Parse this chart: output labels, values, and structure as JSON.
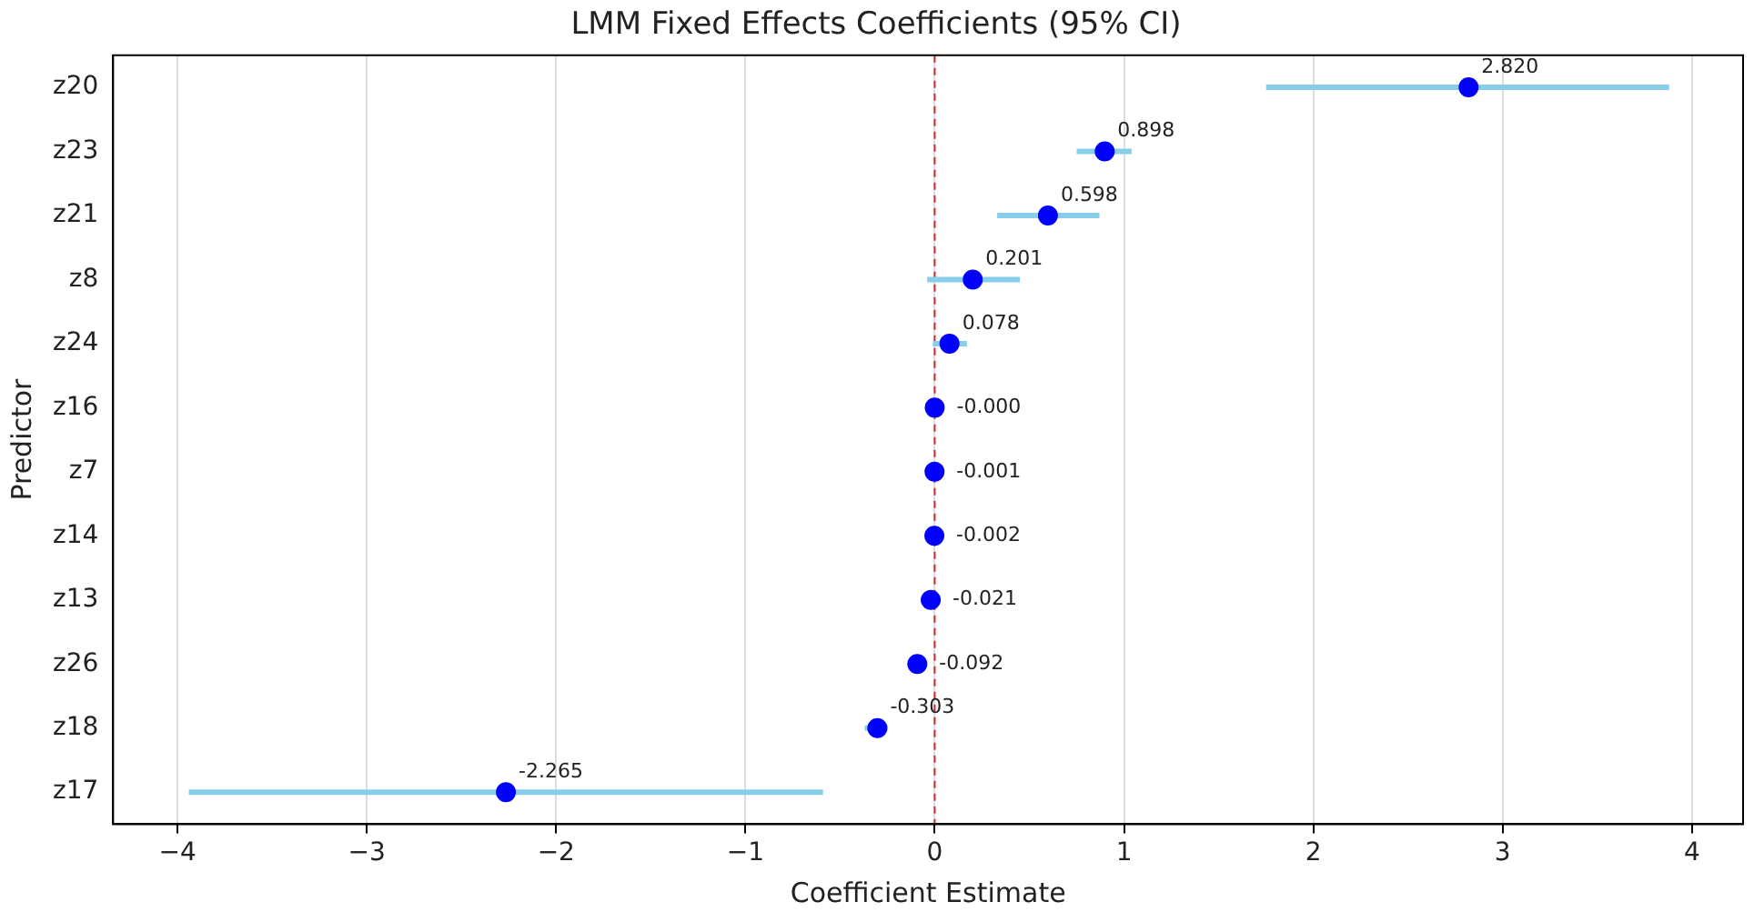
{
  "chart_data": {
    "type": "scatter",
    "orientation": "horizontal",
    "title": "LMM Fixed Effects Coefficients (95% CI)",
    "xlabel": "Coefficient Estimate",
    "ylabel": "Predictor",
    "categories": [
      "z20",
      "z23",
      "z21",
      "z8",
      "z24",
      "z16",
      "z7",
      "z14",
      "z13",
      "z26",
      "z18",
      "z17"
    ],
    "values": [
      2.82,
      0.898,
      0.598,
      0.201,
      0.078,
      -0.0,
      -0.001,
      -0.002,
      -0.021,
      -0.092,
      -0.303,
      -2.265
    ],
    "errors": [
      [
        1.75,
        3.88
      ],
      [
        0.75,
        1.04
      ],
      [
        0.33,
        0.87
      ],
      [
        -0.04,
        0.45
      ],
      [
        -0.01,
        0.17
      ],
      null,
      null,
      null,
      null,
      null,
      [
        -0.37,
        -0.25
      ],
      [
        -3.94,
        -0.59
      ]
    ],
    "value_labels": [
      "2.820",
      "0.898",
      "0.598",
      "0.201",
      "0.078",
      "-0.000",
      "-0.001",
      "-0.002",
      "-0.021",
      "-0.092",
      "-0.303",
      "-2.265"
    ],
    "color": "#0000ff",
    "marker": "circle",
    "xlim": [
      -4.34,
      4.27
    ],
    "xticks": [
      -4,
      -3,
      -2,
      -1,
      0,
      1,
      2,
      3,
      4
    ],
    "grid": "x",
    "ref_lines": [
      {
        "axis": "x",
        "value": 0,
        "color": "#d62728",
        "line_style": "dashed"
      }
    ]
  }
}
